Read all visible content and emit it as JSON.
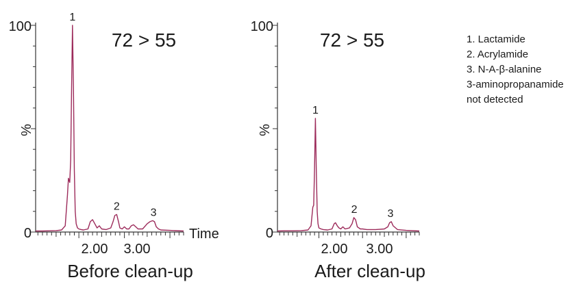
{
  "figure": {
    "legend": {
      "items": [
        "1. Lactamide",
        "2. Acrylamide",
        "3. N-A-β-alanine",
        "3-aminopropanamide",
        "not detected"
      ]
    },
    "trace_color": "#9c2a5a"
  },
  "chart_data": [
    {
      "type": "line",
      "title": "Before clean-up",
      "annotation": "72 > 55",
      "xlabel": "Time",
      "ylabel": "%",
      "y_ticks_labels": [
        "0",
        "100"
      ],
      "x_ticks_labels": [
        "2.00",
        "3.00"
      ],
      "x_ticks": [
        2.0,
        3.0
      ],
      "xlim": [
        1.05,
        4.3
      ],
      "ylim": [
        0,
        100
      ],
      "series": [
        {
          "x": [
            1.05,
            1.2,
            1.35,
            1.5,
            1.62,
            1.7,
            1.75,
            1.77,
            1.8,
            1.82,
            1.84,
            1.86,
            1.88,
            1.9,
            1.92,
            1.94,
            1.97,
            2.0,
            2.05,
            2.1,
            2.2,
            2.25,
            2.3,
            2.35,
            2.4,
            2.45,
            2.5,
            2.6,
            2.7,
            2.75,
            2.79,
            2.83,
            2.87,
            2.9,
            2.95,
            3.0,
            3.05,
            3.1,
            3.15,
            3.2,
            3.25,
            3.3,
            3.4,
            3.5,
            3.56,
            3.62,
            3.66,
            3.7,
            3.75,
            3.8,
            4.0,
            4.3
          ],
          "values": [
            0.5,
            0.5,
            0.6,
            0.7,
            1.0,
            3,
            18,
            26,
            24,
            35,
            70,
            100,
            70,
            30,
            10,
            4,
            2,
            1.5,
            1.2,
            1,
            1.5,
            5,
            6,
            4,
            2,
            3,
            1.5,
            1.2,
            2,
            5,
            8,
            8.5,
            5,
            2,
            1.5,
            2.5,
            1.5,
            1.5,
            3,
            3.5,
            2.5,
            1.5,
            1.5,
            4,
            5,
            5.5,
            5,
            2.5,
            1.5,
            1,
            0.8,
            0.5
          ]
        }
      ],
      "peak_labels": [
        {
          "label": "1",
          "x": 1.86,
          "y": 100
        },
        {
          "label": "2",
          "x": 2.83,
          "y": 8.5
        },
        {
          "label": "3",
          "x": 3.64,
          "y": 5.5
        }
      ]
    },
    {
      "type": "line",
      "title": "After clean-up",
      "annotation": "72 > 55",
      "xlabel": "",
      "ylabel": "%",
      "y_ticks_labels": [
        "0",
        "100"
      ],
      "x_ticks_labels": [
        "2.00",
        "3.00"
      ],
      "x_ticks": [
        2.0,
        3.0
      ],
      "xlim": [
        1.05,
        4.3
      ],
      "ylim": [
        0,
        100
      ],
      "series": [
        {
          "x": [
            1.05,
            1.2,
            1.4,
            1.6,
            1.75,
            1.82,
            1.86,
            1.88,
            1.9,
            1.92,
            1.94,
            1.96,
            1.98,
            2.0,
            2.05,
            2.1,
            2.2,
            2.3,
            2.35,
            2.38,
            2.42,
            2.46,
            2.5,
            2.55,
            2.6,
            2.7,
            2.76,
            2.8,
            2.84,
            2.88,
            2.95,
            3.0,
            3.1,
            3.3,
            3.5,
            3.58,
            3.62,
            3.66,
            3.7,
            3.8,
            4.0,
            4.3
          ],
          "values": [
            0.5,
            0.6,
            0.6,
            0.7,
            1.0,
            3,
            12,
            13,
            30,
            55,
            30,
            10,
            4,
            2,
            1.5,
            1.2,
            1.0,
            1.5,
            4,
            4.5,
            3,
            2,
            1.5,
            2.5,
            1.5,
            2,
            4,
            7,
            6,
            2.5,
            1.5,
            1.5,
            1.2,
            1.2,
            1.5,
            2.5,
            4.5,
            5,
            3,
            1.2,
            0.8,
            0.5
          ]
        }
      ],
      "peak_labels": [
        {
          "label": "1",
          "x": 1.92,
          "y": 55
        },
        {
          "label": "2",
          "x": 2.81,
          "y": 7
        },
        {
          "label": "3",
          "x": 3.64,
          "y": 5
        }
      ]
    }
  ]
}
